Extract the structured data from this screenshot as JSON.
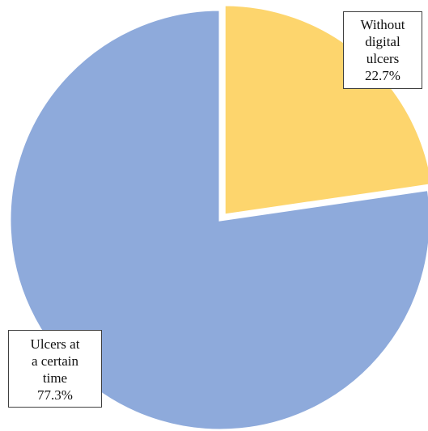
{
  "chart_data": {
    "type": "pie",
    "slices": [
      {
        "label_lines": [
          "Without",
          "digital",
          "ulcers"
        ],
        "value": 22.7,
        "value_label": "22.7%",
        "color": "#fdd56d"
      },
      {
        "label_lines": [
          "Ulcers at",
          "a certain",
          "time"
        ],
        "value": 77.3,
        "value_label": "77.3%",
        "color": "#8eaadb"
      }
    ],
    "start_angle_deg": 0,
    "direction": "clockwise",
    "exploded_slice": 0
  }
}
